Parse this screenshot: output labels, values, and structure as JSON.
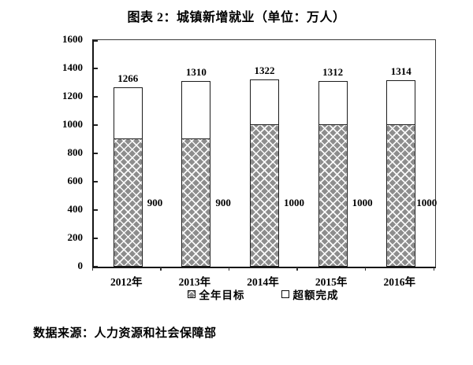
{
  "title": "图表 2：城镇新增就业（单位：万人）",
  "source_note": "数据来源：人力资源和社会保障部",
  "colors": {
    "target_fill": "#8d8d8d",
    "hatch_line": "#ffffff",
    "excess_fill": "#ffffff",
    "bar_border": "#1c1c1c",
    "axis": "#151515",
    "text": "#000000"
  },
  "chart_data": {
    "type": "bar",
    "stacked": true,
    "title": "图表 2：城镇新增就业（单位：万人）",
    "categories": [
      "2012年",
      "2013年",
      "2014年",
      "2015年",
      "2016年"
    ],
    "series": [
      {
        "name": "全年目标",
        "values": [
          900,
          900,
          1000,
          1000,
          1000
        ],
        "style": "gray-crosshatch"
      },
      {
        "name": "超额完成",
        "values": [
          366,
          410,
          322,
          312,
          314
        ],
        "style": "white"
      }
    ],
    "totals": [
      1266,
      1310,
      1322,
      1312,
      1314
    ],
    "target_labels": [
      "900",
      "900",
      "1000",
      "1000",
      "1000"
    ],
    "xlabel": "",
    "ylabel": "",
    "ylim": [
      0,
      1600
    ],
    "yticks": [
      0,
      200,
      400,
      600,
      800,
      1000,
      1200,
      1400,
      1600
    ],
    "grid": false,
    "legend": [
      "全年目标",
      "超额完成"
    ],
    "legend_position": "bottom"
  }
}
